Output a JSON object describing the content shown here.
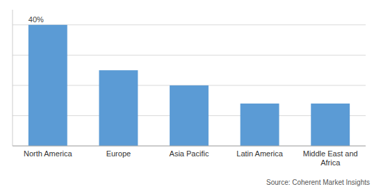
{
  "chart_data": {
    "type": "bar",
    "categories": [
      "North America",
      "Europe",
      "Asia Pacific",
      "Latin America",
      "Middle East and\nAfrica"
    ],
    "values": [
      40,
      25,
      20,
      14,
      14
    ],
    "color": "#5b9bd5",
    "ylim": [
      0,
      45
    ],
    "yticks": [
      0,
      10,
      20,
      30,
      40
    ],
    "grid": true,
    "tick_labels": "x",
    "annotations": [
      {
        "text": "40%",
        "x": "North America",
        "y": 40
      }
    ],
    "source": "Source: Coherent Market Insights"
  }
}
